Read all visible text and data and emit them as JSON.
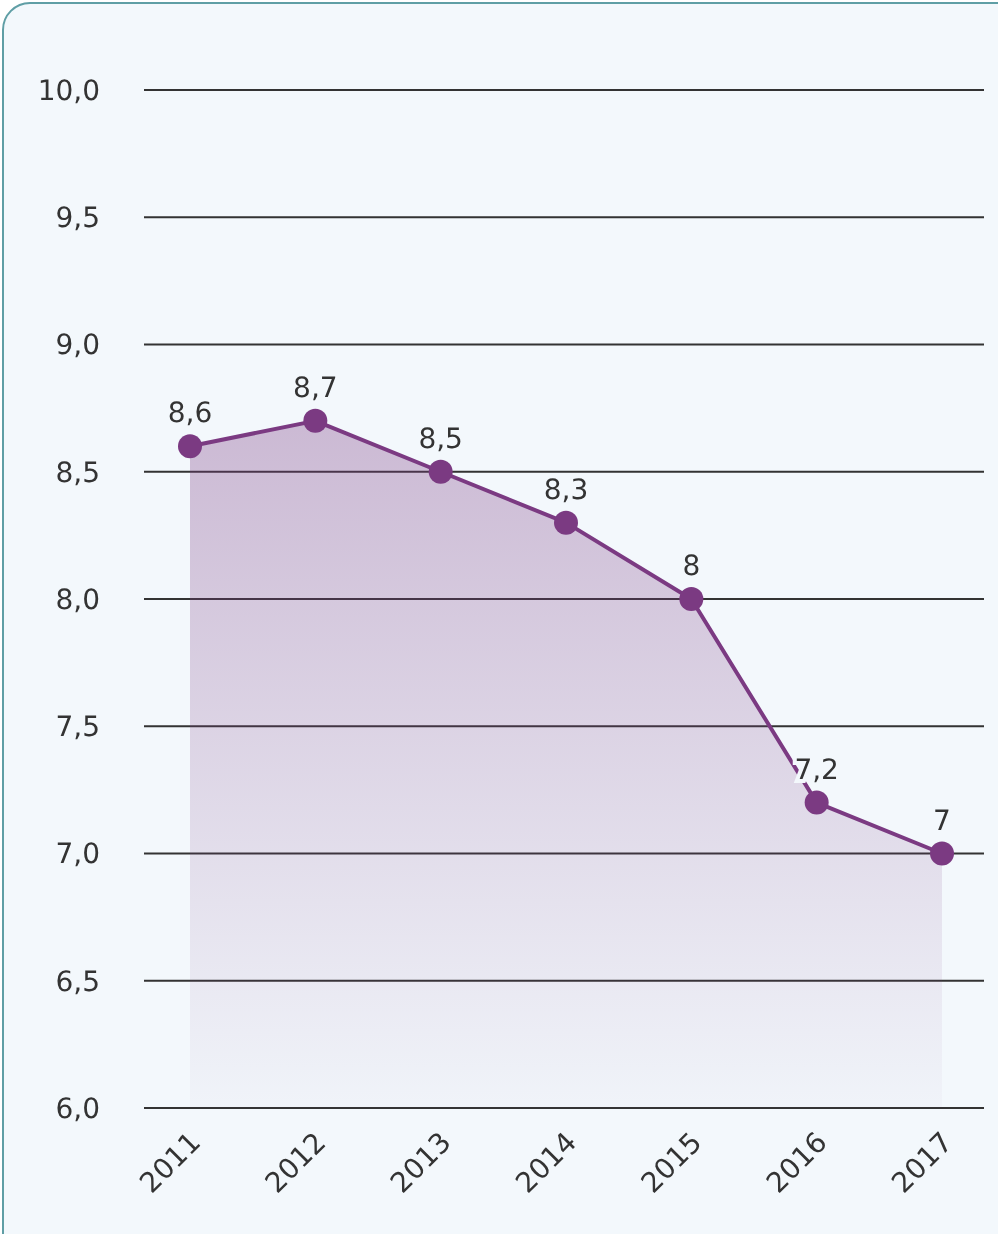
{
  "chart_data": {
    "type": "area",
    "categories": [
      "2011",
      "2012",
      "2013",
      "2014",
      "2015",
      "2016",
      "2017"
    ],
    "series": [
      {
        "color": "#7b3a82",
        "values": [
          8.6,
          8.7,
          8.5,
          8.3,
          8,
          7.2,
          7
        ],
        "value_labels": [
          "8,6",
          "8,7",
          "8,5",
          "8,3",
          "8",
          "7,2",
          "7"
        ]
      }
    ],
    "ylim": [
      6,
      10
    ],
    "yticks": [
      {
        "value": 6,
        "label": "6,0"
      },
      {
        "value": 6.5,
        "label": "6,5"
      },
      {
        "value": 7,
        "label": "7,0"
      },
      {
        "value": 7.5,
        "label": "7,5"
      },
      {
        "value": 8,
        "label": "8,0"
      },
      {
        "value": 8.5,
        "label": "8,5"
      },
      {
        "value": 9,
        "label": "9,0"
      },
      {
        "value": 9.5,
        "label": "9,5"
      },
      {
        "value": 10,
        "label": "10,0"
      }
    ],
    "grid": "y",
    "marker": "circle",
    "legend": false
  }
}
